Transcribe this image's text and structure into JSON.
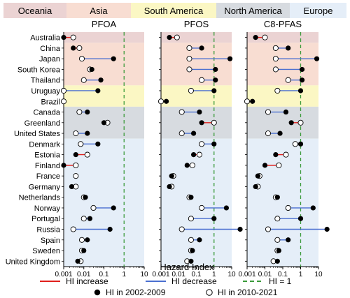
{
  "chart_data": {
    "type": "scatter",
    "regions": [
      {
        "name": "Oceania",
        "color": "#ebd3d3",
        "countries": [
          "Australia"
        ]
      },
      {
        "name": "Asia",
        "color": "#f8ddd2",
        "countries": [
          "China",
          "Japan",
          "South Korea",
          "Thailand"
        ]
      },
      {
        "name": "South America",
        "color": "#fbf7c4",
        "countries": [
          "Uruguay",
          "Brazil"
        ]
      },
      {
        "name": "North America",
        "color": "#d7dbe0",
        "countries": [
          "Canada",
          "Greenland",
          "United States"
        ]
      },
      {
        "name": "Europe",
        "color": "#e5eef8",
        "countries": [
          "Denmark",
          "Estonia",
          "Finland",
          "France",
          "Germany",
          "Netherlands",
          "Norway",
          "Portugal",
          "Russia",
          "Spain",
          "Sweden",
          "United Kingdom"
        ]
      }
    ],
    "panels": [
      {
        "title": "PFOA",
        "hi_2002_2009": [
          0.001,
          0.003,
          0.3,
          0.025,
          0.07,
          0.05,
          null,
          0.015,
          0.1,
          0.015,
          0.05,
          0.004,
          0.001,
          null,
          0.0025,
          0.012,
          0.3,
          0.02,
          0.2,
          0.015,
          0.01,
          0.005
        ],
        "hi_2010_2021": [
          0.003,
          0.006,
          0.008,
          0.02,
          0.01,
          0.001,
          0.001,
          0.006,
          0.15,
          0.004,
          0.007,
          0.015,
          0.004,
          0.004,
          0.004,
          0.01,
          0.03,
          0.01,
          0.003,
          0.008,
          0.008,
          0.007
        ]
      },
      {
        "title": "PFOS",
        "hi_2002_2009": [
          0.003,
          0.2,
          8,
          1.2,
          1.2,
          1,
          0.002,
          0.15,
          0.2,
          0.07,
          1,
          0.07,
          0.03,
          0.004,
          0.003,
          0.05,
          5,
          1,
          30,
          0.15,
          0.06,
          0.05
        ],
        "hi_2010_2021": [
          0.008,
          0.04,
          0.04,
          0.04,
          0.2,
          0.05,
          0.001,
          0.015,
          1,
          0.015,
          0.2,
          0.15,
          0.06,
          0.005,
          0.004,
          0.04,
          0.2,
          0.05,
          0.015,
          0.05,
          0.05,
          0.03
        ]
      },
      {
        "title": "C8-PFAS",
        "hi_2002_2009": [
          0.003,
          0.2,
          8,
          1.2,
          1.2,
          1,
          0.002,
          0.15,
          0.3,
          0.07,
          1,
          0.04,
          0.01,
          0.004,
          0.003,
          0.05,
          5,
          1,
          30,
          0.2,
          0.06,
          0.05
        ],
        "hi_2010_2021": [
          0.01,
          0.04,
          0.04,
          0.04,
          0.2,
          0.05,
          0.001,
          0.015,
          1,
          0.015,
          0.5,
          0.15,
          0.06,
          0.005,
          0.004,
          0.04,
          0.2,
          0.05,
          0.015,
          0.05,
          0.05,
          0.03
        ]
      }
    ],
    "x_scale": "log",
    "xlim": [
      0.001,
      10
    ],
    "x_ticks": [
      "0.001",
      "0.01",
      "0.1",
      "1",
      "10"
    ],
    "xlabel": "Hazard Index",
    "reference_line": 1,
    "colors": {
      "increase": "#e0201c",
      "decrease": "#4a6fd0",
      "threshold": "#3a9a3a"
    },
    "legend": {
      "increase": "HI increase",
      "decrease": "HI decrease",
      "threshold": "HI = 1",
      "marker_early": "HI in 2002-2009",
      "marker_late": "HI in 2010-2021"
    }
  }
}
